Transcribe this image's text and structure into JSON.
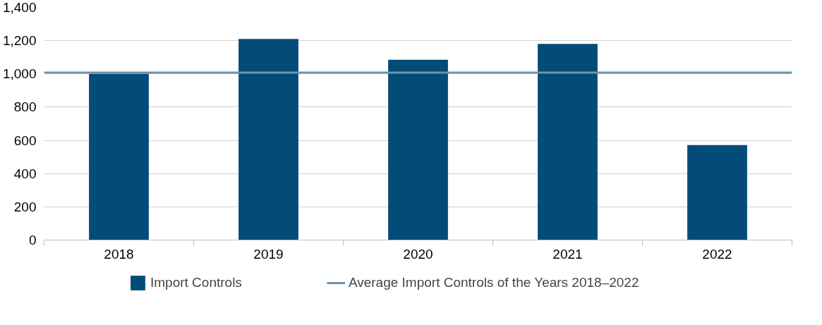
{
  "chart_data": {
    "type": "bar",
    "categories": [
      "2018",
      "2019",
      "2020",
      "2021",
      "2022"
    ],
    "series": [
      {
        "name": "Import Controls",
        "color": "#034c78",
        "values": [
          1000,
          1210,
          1085,
          1180,
          572
        ]
      }
    ],
    "ylim": [
      0,
      1400
    ],
    "yticks": [
      0,
      {
        "value": 200,
        "label": "200"
      },
      {
        "value": 400,
        "label": "400"
      },
      {
        "value": 600,
        "label": "600"
      },
      {
        "value": 800,
        "label": "800"
      },
      {
        "value": 1000,
        "label": "1,000"
      },
      {
        "value": 1200,
        "label": "1,200"
      },
      {
        "value": 1400,
        "label": "1,400"
      }
    ],
    "grid": "y",
    "legend": "bottom",
    "ref_lines": [
      {
        "axis": "y",
        "value": 1008,
        "label": "Average Import Controls of the Years 2018–2022",
        "color": "#6b93b0"
      }
    ]
  }
}
